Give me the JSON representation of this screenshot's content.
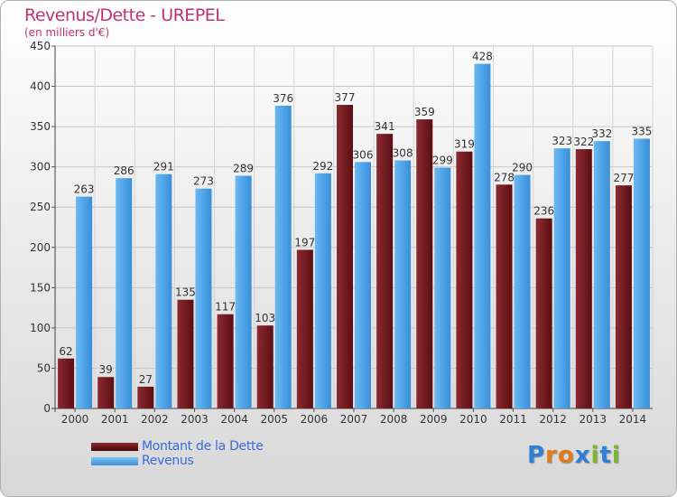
{
  "header": {
    "title": "Revenus/Dette - UREPEL",
    "subtitle": "(en milliers d'€)"
  },
  "colors": {
    "dette": "#7a1c22",
    "revenus": "#4aa0e6",
    "title": "#c0336f",
    "legend_text": "#3a6ad8"
  },
  "legend": {
    "items": [
      {
        "label": "Montant de la Dette",
        "color": "#6a0f14"
      },
      {
        "label": "Revenus",
        "color": "#4aa0e6"
      }
    ]
  },
  "logo": {
    "text": "Proxiti",
    "letters": [
      "P",
      "r",
      "o",
      "x",
      "i",
      "t",
      "i"
    ],
    "letter_colors": [
      "#2f7fd6",
      "#e07a1a",
      "#e07a1a",
      "#2f7fd6",
      "#7cb82f",
      "#2f7fd6",
      "#7cb82f"
    ]
  },
  "chart_data": {
    "type": "bar",
    "categories": [
      "2000",
      "2001",
      "2002",
      "2003",
      "2004",
      "2005",
      "2006",
      "2007",
      "2008",
      "2009",
      "2010",
      "2011",
      "2012",
      "2013",
      "2014"
    ],
    "series": [
      {
        "name": "Montant de la Dette",
        "values": [
          62,
          39,
          27,
          135,
          117,
          103,
          197,
          377,
          341,
          359,
          319,
          278,
          236,
          322,
          277
        ]
      },
      {
        "name": "Revenus",
        "values": [
          263,
          286,
          291,
          273,
          289,
          376,
          292,
          306,
          308,
          299,
          428,
          290,
          323,
          332,
          335
        ]
      }
    ],
    "ylim": [
      0,
      450
    ],
    "yticks": [
      0,
      50,
      100,
      150,
      200,
      250,
      300,
      350,
      400,
      450
    ],
    "grid": true,
    "legend_position": "bottom-left"
  }
}
